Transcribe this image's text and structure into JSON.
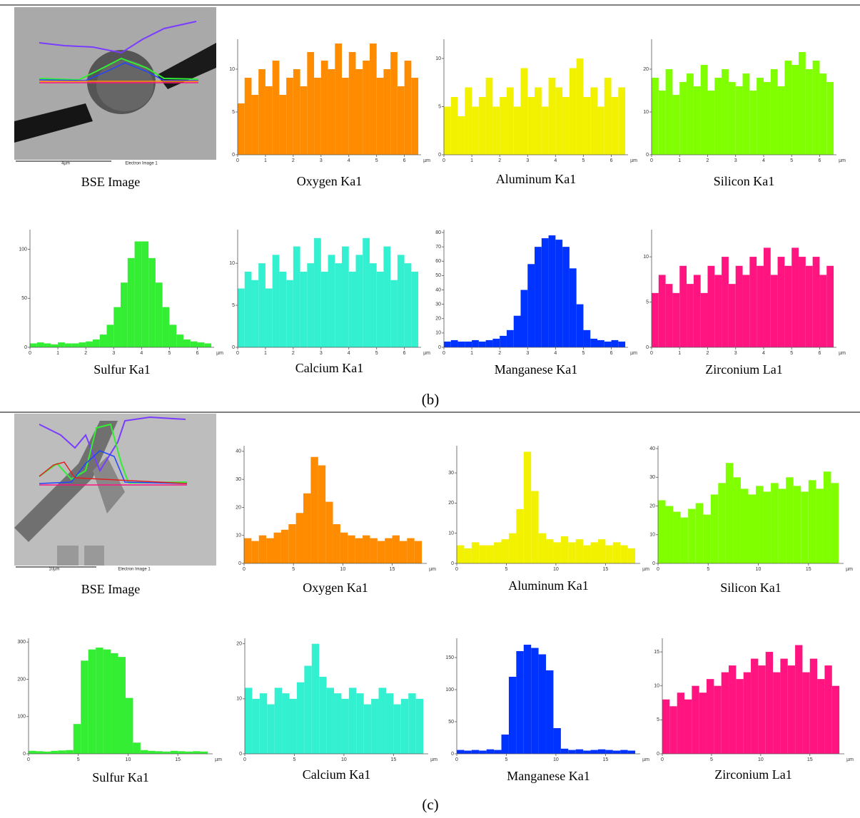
{
  "panels": [
    {
      "caption": "(b)",
      "image_label": "BSE Image",
      "scale_bar": "4µm",
      "image_source": "Electron Image 1"
    },
    {
      "caption": "(c)",
      "image_label": "BSE Image",
      "scale_bar": "10µm",
      "image_source": "Electron Image 1"
    }
  ],
  "chart_data": [
    {
      "type": "histogram",
      "title": "Oxygen Ka1",
      "xlabel": "µm",
      "color": "#ff8c00",
      "bins": [
        0,
        0.25,
        0.5,
        0.75,
        1,
        1.25,
        1.5,
        1.75,
        2,
        2.25,
        2.5,
        2.75,
        3,
        3.25,
        3.5,
        3.75,
        4,
        4.25,
        4.5,
        4.75,
        5,
        5.25,
        5.5,
        5.75,
        6,
        6.25,
        6.5
      ],
      "values": [
        6,
        9,
        7,
        10,
        8,
        11,
        7,
        9,
        10,
        8,
        12,
        9,
        11,
        10,
        13,
        9,
        12,
        10,
        11,
        13,
        9,
        10,
        12,
        8,
        11,
        9
      ],
      "xlim": [
        0,
        6.6
      ],
      "xticks": [
        0,
        1,
        2,
        3,
        4,
        5,
        6
      ],
      "ylim": [
        0,
        13.5
      ],
      "yticks": [
        0,
        5,
        10
      ]
    },
    {
      "type": "histogram",
      "title": "Aluminum Ka1",
      "xlabel": "µm",
      "color": "#f2f200",
      "bins": [
        0,
        0.25,
        0.5,
        0.75,
        1,
        1.25,
        1.5,
        1.75,
        2,
        2.25,
        2.5,
        2.75,
        3,
        3.25,
        3.5,
        3.75,
        4,
        4.25,
        4.5,
        4.75,
        5,
        5.25,
        5.5,
        5.75,
        6,
        6.25,
        6.5
      ],
      "values": [
        5,
        6,
        4,
        7,
        5,
        6,
        8,
        5,
        6,
        7,
        5,
        9,
        6,
        7,
        5,
        8,
        7,
        6,
        9,
        10,
        6,
        7,
        5,
        8,
        6,
        7
      ],
      "xlim": [
        0,
        6.6
      ],
      "xticks": [
        0,
        1,
        2,
        3,
        4,
        5,
        6
      ],
      "ylim": [
        0,
        12
      ],
      "yticks": [
        0,
        5,
        10
      ]
    },
    {
      "type": "histogram",
      "title": "Silicon Ka1",
      "xlabel": "µm",
      "color": "#7fff00",
      "bins": [
        0,
        0.25,
        0.5,
        0.75,
        1,
        1.25,
        1.5,
        1.75,
        2,
        2.25,
        2.5,
        2.75,
        3,
        3.25,
        3.5,
        3.75,
        4,
        4.25,
        4.5,
        4.75,
        5,
        5.25,
        5.5,
        5.75,
        6,
        6.25,
        6.5
      ],
      "values": [
        18,
        15,
        20,
        14,
        17,
        19,
        16,
        21,
        15,
        18,
        20,
        17,
        16,
        19,
        15,
        18,
        17,
        20,
        16,
        22,
        21,
        24,
        20,
        22,
        19,
        17
      ],
      "xlim": [
        0,
        6.6
      ],
      "xticks": [
        0,
        1,
        2,
        3,
        4,
        5,
        6
      ],
      "ylim": [
        0,
        27
      ],
      "yticks": [
        0,
        10,
        20
      ]
    },
    {
      "type": "histogram",
      "title": "Sulfur Ka1",
      "xlabel": "µm",
      "color": "#33ee33",
      "bins": [
        0,
        0.25,
        0.5,
        0.75,
        1,
        1.25,
        1.5,
        1.75,
        2,
        2.25,
        2.5,
        2.75,
        3,
        3.25,
        3.5,
        3.75,
        4,
        4.25,
        4.5,
        4.75,
        5,
        5.25,
        5.5,
        5.75,
        6,
        6.25,
        6.5
      ],
      "values": [
        4,
        5,
        4,
        3,
        5,
        4,
        4,
        5,
        6,
        8,
        13,
        23,
        41,
        66,
        91,
        108,
        108,
        91,
        66,
        41,
        23,
        13,
        8,
        6,
        5,
        4
      ],
      "xlim": [
        0,
        6.6
      ],
      "xticks": [
        0,
        1,
        2,
        3,
        4,
        5,
        6
      ],
      "ylim": [
        0,
        120
      ],
      "yticks": [
        0,
        50,
        100
      ]
    },
    {
      "type": "histogram",
      "title": "Calcium Ka1",
      "xlabel": "µm",
      "color": "#33f0d0",
      "bins": [
        0,
        0.25,
        0.5,
        0.75,
        1,
        1.25,
        1.5,
        1.75,
        2,
        2.25,
        2.5,
        2.75,
        3,
        3.25,
        3.5,
        3.75,
        4,
        4.25,
        4.5,
        4.75,
        5,
        5.25,
        5.5,
        5.75,
        6,
        6.25,
        6.5
      ],
      "values": [
        7,
        9,
        8,
        10,
        7,
        11,
        9,
        8,
        12,
        9,
        10,
        13,
        9,
        11,
        10,
        12,
        9,
        11,
        13,
        10,
        9,
        12,
        8,
        11,
        10,
        9
      ],
      "xlim": [
        0,
        6.6
      ],
      "xticks": [
        0,
        1,
        2,
        3,
        4,
        5,
        6
      ],
      "ylim": [
        0,
        14
      ],
      "yticks": [
        0,
        5,
        10
      ]
    },
    {
      "type": "histogram",
      "title": "Manganese Ka1",
      "xlabel": "µm",
      "color": "#0033ff",
      "bins": [
        0,
        0.25,
        0.5,
        0.75,
        1,
        1.25,
        1.5,
        1.75,
        2,
        2.25,
        2.5,
        2.75,
        3,
        3.25,
        3.5,
        3.75,
        4,
        4.25,
        4.5,
        4.75,
        5,
        5.25,
        5.5,
        5.75,
        6,
        6.25,
        6.5
      ],
      "values": [
        4,
        5,
        4,
        4,
        5,
        4,
        5,
        6,
        8,
        12,
        22,
        40,
        58,
        70,
        76,
        78,
        75,
        70,
        55,
        30,
        12,
        6,
        5,
        4,
        5,
        4
      ],
      "xlim": [
        0,
        6.6
      ],
      "xticks": [
        0,
        1,
        2,
        3,
        4,
        5,
        6
      ],
      "ylim": [
        0,
        82
      ],
      "yticks": [
        0,
        10,
        20,
        30,
        40,
        50,
        60,
        70,
        80
      ]
    },
    {
      "type": "histogram",
      "title": "Zirconium La1",
      "xlabel": "µm",
      "color": "#ff1480",
      "bins": [
        0,
        0.25,
        0.5,
        0.75,
        1,
        1.25,
        1.5,
        1.75,
        2,
        2.25,
        2.5,
        2.75,
        3,
        3.25,
        3.5,
        3.75,
        4,
        4.25,
        4.5,
        4.75,
        5,
        5.25,
        5.5,
        5.75,
        6,
        6.25,
        6.5
      ],
      "values": [
        6,
        8,
        7,
        6,
        9,
        7,
        8,
        6,
        9,
        8,
        10,
        7,
        9,
        8,
        10,
        9,
        11,
        8,
        10,
        9,
        11,
        10,
        9,
        10,
        8,
        9
      ],
      "xlim": [
        0,
        6.6
      ],
      "xticks": [
        0,
        1,
        2,
        3,
        4,
        5,
        6
      ],
      "ylim": [
        0,
        13
      ],
      "yticks": [
        0,
        5,
        10
      ]
    },
    {
      "type": "histogram",
      "title": "Oxygen Ka1",
      "xlabel": "µm",
      "color": "#ff8c00",
      "bins": [
        0,
        0.75,
        1.5,
        2.25,
        3,
        3.75,
        4.5,
        5.25,
        6,
        6.75,
        7.5,
        8.25,
        9,
        9.75,
        10.5,
        11.25,
        12,
        12.75,
        13.5,
        14.25,
        15,
        15.75,
        16.5,
        17.25,
        18
      ],
      "values": [
        9,
        8,
        10,
        9,
        11,
        12,
        14,
        18,
        25,
        38,
        35,
        22,
        14,
        11,
        10,
        9,
        10,
        9,
        8,
        9,
        10,
        8,
        9,
        8
      ],
      "xlim": [
        0,
        18.5
      ],
      "xticks": [
        0,
        5,
        10,
        15
      ],
      "ylim": [
        0,
        42
      ],
      "yticks": [
        0,
        10,
        20,
        30,
        40
      ]
    },
    {
      "type": "histogram",
      "title": "Aluminum Ka1",
      "xlabel": "µm",
      "color": "#f2f200",
      "bins": [
        0,
        0.75,
        1.5,
        2.25,
        3,
        3.75,
        4.5,
        5.25,
        6,
        6.75,
        7.5,
        8.25,
        9,
        9.75,
        10.5,
        11.25,
        12,
        12.75,
        13.5,
        14.25,
        15,
        15.75,
        16.5,
        17.25,
        18
      ],
      "values": [
        6,
        5,
        7,
        6,
        6,
        7,
        8,
        10,
        18,
        37,
        24,
        10,
        8,
        7,
        9,
        7,
        8,
        6,
        7,
        8,
        6,
        7,
        6,
        5
      ],
      "xlim": [
        0,
        18.5
      ],
      "xticks": [
        0,
        5,
        10,
        15
      ],
      "ylim": [
        0,
        39
      ],
      "yticks": [
        0,
        10,
        20,
        30
      ]
    },
    {
      "type": "histogram",
      "title": "Silicon Ka1",
      "xlabel": "µm",
      "color": "#7fff00",
      "bins": [
        0,
        0.75,
        1.5,
        2.25,
        3,
        3.75,
        4.5,
        5.25,
        6,
        6.75,
        7.5,
        8.25,
        9,
        9.75,
        10.5,
        11.25,
        12,
        12.75,
        13.5,
        14.25,
        15,
        15.75,
        16.5,
        17.25,
        18
      ],
      "values": [
        22,
        20,
        18,
        16,
        19,
        21,
        17,
        24,
        28,
        35,
        30,
        26,
        24,
        27,
        25,
        28,
        26,
        30,
        27,
        25,
        29,
        26,
        32,
        28
      ],
      "xlim": [
        0,
        18.5
      ],
      "xticks": [
        0,
        5,
        10,
        15
      ],
      "ylim": [
        0,
        41
      ],
      "yticks": [
        0,
        10,
        20,
        30,
        40
      ]
    },
    {
      "type": "histogram",
      "title": "Sulfur Ka1",
      "xlabel": "µm",
      "color": "#33ee33",
      "bins": [
        0,
        0.75,
        1.5,
        2.25,
        3,
        3.75,
        4.5,
        5.25,
        6,
        6.75,
        7.5,
        8.25,
        9,
        9.75,
        10.5,
        11.25,
        12,
        12.75,
        13.5,
        14.25,
        15,
        15.75,
        16.5,
        17.25,
        18
      ],
      "values": [
        8,
        7,
        6,
        8,
        9,
        10,
        80,
        250,
        280,
        285,
        280,
        270,
        260,
        150,
        30,
        10,
        8,
        7,
        6,
        8,
        7,
        6,
        7,
        6
      ],
      "xlim": [
        0,
        18.5
      ],
      "xticks": [
        0,
        5,
        10,
        15
      ],
      "ylim": [
        0,
        310
      ],
      "yticks": [
        0,
        100,
        200,
        300
      ]
    },
    {
      "type": "histogram",
      "title": "Calcium Ka1",
      "xlabel": "µm",
      "color": "#33f0d0",
      "bins": [
        0,
        0.75,
        1.5,
        2.25,
        3,
        3.75,
        4.5,
        5.25,
        6,
        6.75,
        7.5,
        8.25,
        9,
        9.75,
        10.5,
        11.25,
        12,
        12.75,
        13.5,
        14.25,
        15,
        15.75,
        16.5,
        17.25,
        18
      ],
      "values": [
        12,
        10,
        11,
        9,
        12,
        11,
        10,
        13,
        16,
        20,
        14,
        12,
        11,
        10,
        12,
        11,
        9,
        10,
        12,
        11,
        9,
        10,
        11,
        10
      ],
      "xlim": [
        0,
        18.5
      ],
      "xticks": [
        0,
        5,
        10,
        15
      ],
      "ylim": [
        0,
        21
      ],
      "yticks": [
        0,
        10,
        20
      ]
    },
    {
      "type": "histogram",
      "title": "Manganese Ka1",
      "xlabel": "µm",
      "color": "#0033ff",
      "bins": [
        0,
        0.75,
        1.5,
        2.25,
        3,
        3.75,
        4.5,
        5.25,
        6,
        6.75,
        7.5,
        8.25,
        9,
        9.75,
        10.5,
        11.25,
        12,
        12.75,
        13.5,
        14.25,
        15,
        15.75,
        16.5,
        17.25,
        18
      ],
      "values": [
        6,
        5,
        6,
        5,
        7,
        6,
        30,
        120,
        160,
        170,
        165,
        155,
        130,
        40,
        8,
        6,
        7,
        5,
        6,
        7,
        6,
        5,
        6,
        5
      ],
      "xlim": [
        0,
        18.5
      ],
      "xticks": [
        0,
        5,
        10,
        15
      ],
      "ylim": [
        0,
        180
      ],
      "yticks": [
        0,
        50,
        100,
        150
      ]
    },
    {
      "type": "histogram",
      "title": "Zirconium La1",
      "xlabel": "µm",
      "color": "#ff1480",
      "bins": [
        0,
        0.75,
        1.5,
        2.25,
        3,
        3.75,
        4.5,
        5.25,
        6,
        6.75,
        7.5,
        8.25,
        9,
        9.75,
        10.5,
        11.25,
        12,
        12.75,
        13.5,
        14.25,
        15,
        15.75,
        16.5,
        17.25,
        18
      ],
      "values": [
        8,
        7,
        9,
        8,
        10,
        9,
        11,
        10,
        12,
        13,
        11,
        12,
        14,
        13,
        15,
        12,
        14,
        13,
        16,
        12,
        14,
        11,
        13,
        10
      ],
      "xlim": [
        0,
        18.5
      ],
      "xticks": [
        0,
        5,
        10,
        15
      ],
      "ylim": [
        0,
        17
      ],
      "yticks": [
        0,
        5,
        10,
        15
      ]
    }
  ]
}
